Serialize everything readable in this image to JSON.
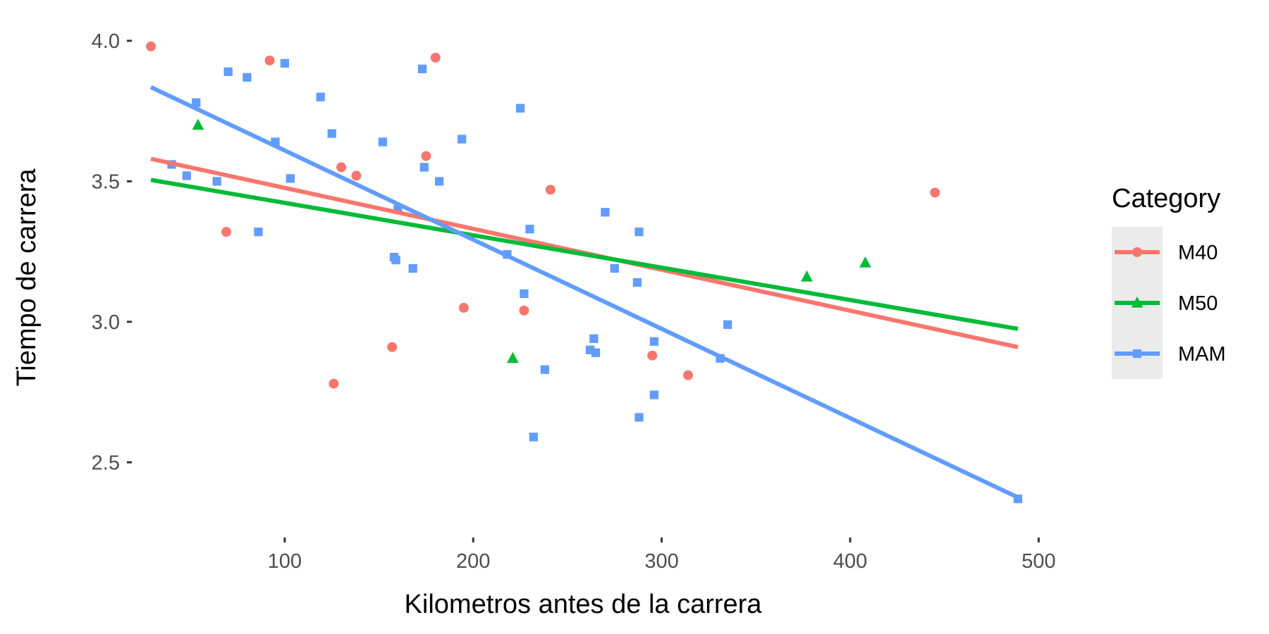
{
  "chart_data": {
    "type": "scatter",
    "title": "",
    "xlabel": "Kilometros antes de la carrera",
    "ylabel": "Tiempo de carrera",
    "xlim": [
      20,
      510
    ],
    "ylim": [
      2.24,
      4.07
    ],
    "x_ticks": [
      100,
      200,
      300,
      400,
      500
    ],
    "x_tick_labels": [
      "100",
      "200",
      "300",
      "400",
      "500"
    ],
    "y_ticks": [
      2.5,
      3.0,
      3.5,
      4.0
    ],
    "y_tick_labels": [
      "2.5",
      "3.0",
      "3.5",
      "4.0"
    ],
    "grid": false,
    "legend": {
      "title": "Category",
      "position": "right"
    },
    "series": [
      {
        "name": "M40",
        "color": "#F8766D",
        "marker": "circle",
        "points": [
          [
            29,
            3.98
          ],
          [
            69,
            3.32
          ],
          [
            92,
            3.93
          ],
          [
            126,
            2.78
          ],
          [
            130,
            3.55
          ],
          [
            138,
            3.52
          ],
          [
            157,
            2.91
          ],
          [
            175,
            3.59
          ],
          [
            180,
            3.94
          ],
          [
            195,
            3.05
          ],
          [
            227,
            3.04
          ],
          [
            241,
            3.47
          ],
          [
            295,
            2.88
          ],
          [
            314,
            2.81
          ],
          [
            445,
            3.46
          ]
        ],
        "fit": {
          "x": [
            29,
            489
          ],
          "y": [
            3.58,
            2.91
          ]
        }
      },
      {
        "name": "M50",
        "color": "#00BA38",
        "marker": "triangle",
        "points": [
          [
            54,
            3.7
          ],
          [
            221,
            2.87
          ],
          [
            377,
            3.16
          ],
          [
            408,
            3.21
          ]
        ],
        "fit": {
          "x": [
            29,
            489
          ],
          "y": [
            3.505,
            2.975
          ]
        }
      },
      {
        "name": "MAM",
        "color": "#619CFF",
        "marker": "square",
        "points": [
          [
            40,
            3.56
          ],
          [
            48,
            3.52
          ],
          [
            53,
            3.78
          ],
          [
            64,
            3.5
          ],
          [
            70,
            3.89
          ],
          [
            80,
            3.87
          ],
          [
            86,
            3.32
          ],
          [
            95,
            3.64
          ],
          [
            100,
            3.92
          ],
          [
            103,
            3.51
          ],
          [
            119,
            3.8
          ],
          [
            125,
            3.67
          ],
          [
            152,
            3.64
          ],
          [
            158,
            3.23
          ],
          [
            159,
            3.22
          ],
          [
            160,
            3.4
          ],
          [
            168,
            3.19
          ],
          [
            173,
            3.9
          ],
          [
            174,
            3.55
          ],
          [
            182,
            3.5
          ],
          [
            194,
            3.65
          ],
          [
            218,
            3.24
          ],
          [
            225,
            3.76
          ],
          [
            227,
            3.1
          ],
          [
            230,
            3.33
          ],
          [
            232,
            2.59
          ],
          [
            238,
            2.83
          ],
          [
            262,
            2.9
          ],
          [
            264,
            2.94
          ],
          [
            265,
            2.89
          ],
          [
            270,
            3.39
          ],
          [
            275,
            3.19
          ],
          [
            287,
            3.14
          ],
          [
            288,
            3.32
          ],
          [
            288,
            2.66
          ],
          [
            296,
            2.93
          ],
          [
            296,
            2.74
          ],
          [
            331,
            2.87
          ],
          [
            335,
            2.99
          ],
          [
            489,
            2.37
          ]
        ],
        "fit": {
          "x": [
            29,
            489
          ],
          "y": [
            3.835,
            2.375
          ]
        }
      }
    ]
  }
}
